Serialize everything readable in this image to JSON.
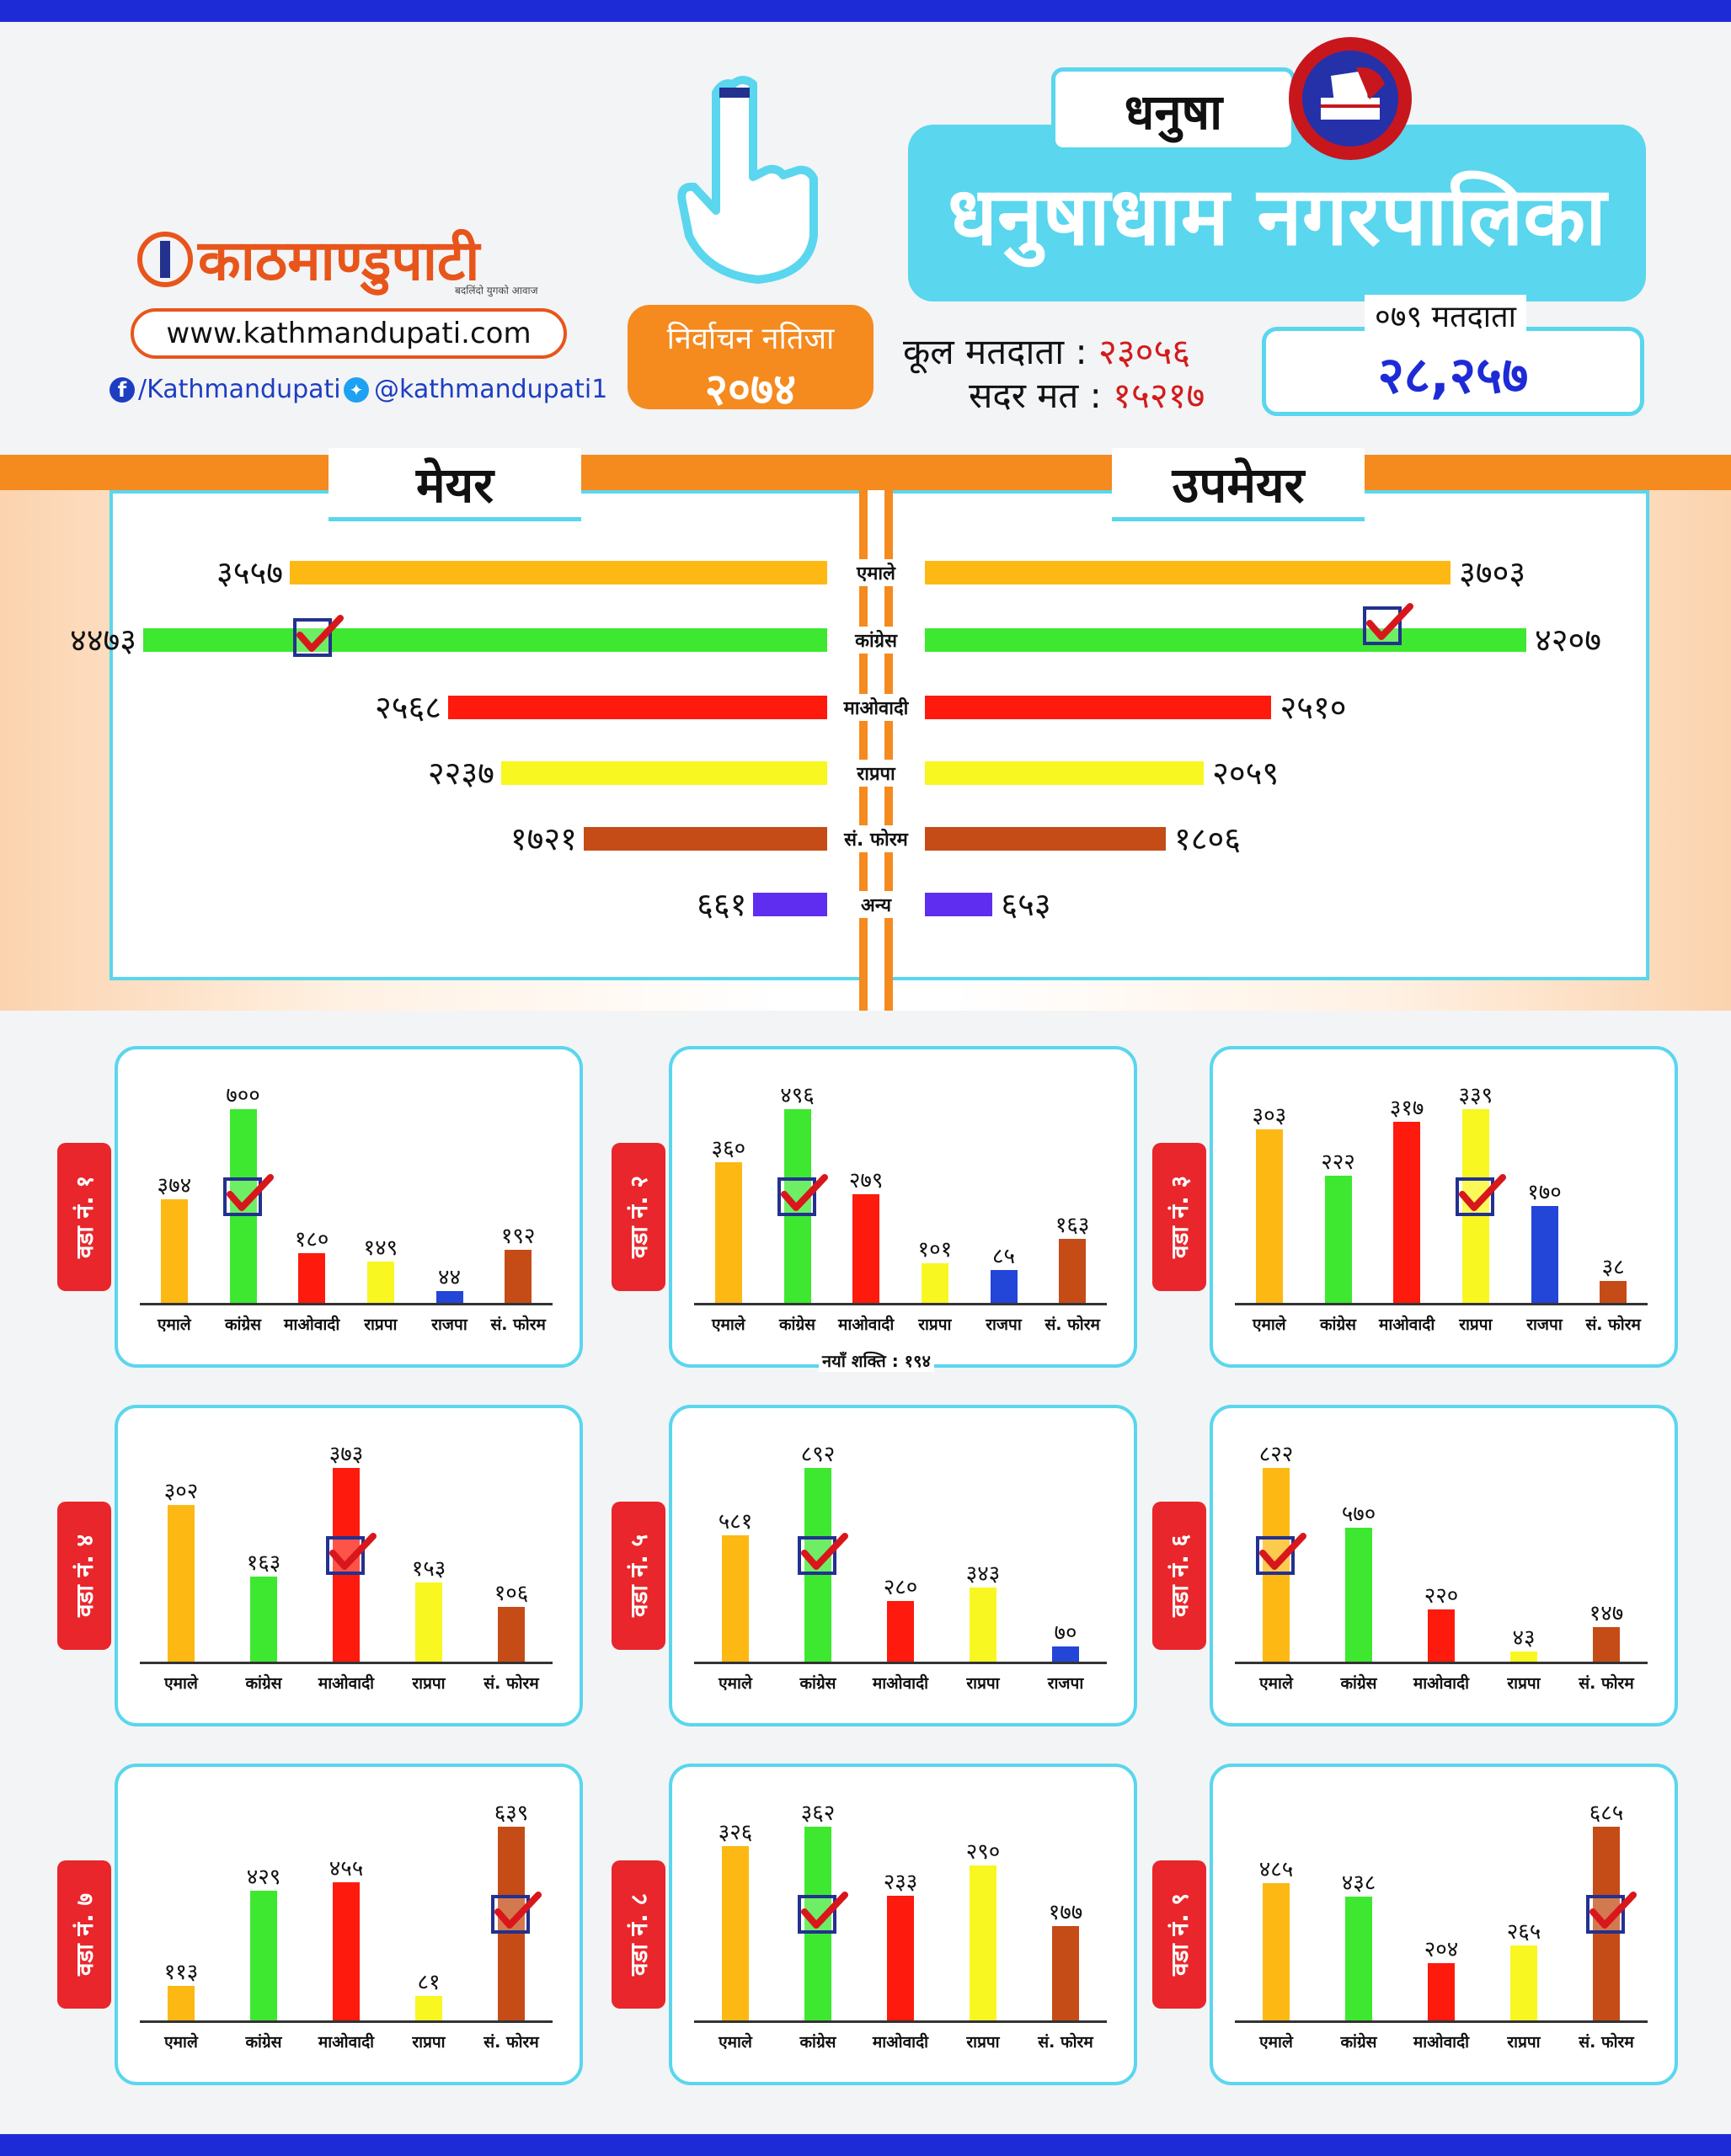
{
  "brand": {
    "name": "काठमाण्डुपाटी",
    "tagline": "बदलिंदो युगको आवाज",
    "url": "www.kathmandupati.com",
    "facebook": "/Kathmandupati",
    "twitter": "@kathmandupati1"
  },
  "header": {
    "result_line1": "निर्वाचन नतिजा",
    "result_year": "२०७४",
    "district": "धनुषा",
    "municipality": "धनुषाधाम नगरपालिका",
    "total_voters_label": "कूल मतदाता :",
    "total_voters_value": "२३०५६",
    "valid_votes_label": "सदर मत :",
    "valid_votes_value": "१५२१७",
    "voters_079_label": "०७९ मतदाता",
    "voters_079_value": "२८,२५७"
  },
  "colors": {
    "एमाले": "#fdb813",
    "कांग्रेस": "#3ee830",
    "माओवादी": "#fe1a0d",
    "राप्रपा": "#f8f721",
    "संफोरम": "#c54c16",
    "राजपा": "#2345d8",
    "अन्य": "#5e2df0"
  },
  "chart_data": [
    {
      "type": "bar",
      "title": "मेयर / उपमेयर",
      "orientation": "horizontal-butterfly",
      "left_title": "मेयर",
      "right_title": "उपमेयर",
      "categories": [
        "एमाले",
        "कांग्रेस",
        "माओवादी",
        "राप्रपा",
        "सं. फोरम",
        "अन्य"
      ],
      "color_keys": [
        "एमाले",
        "कांग्रेस",
        "माओवादी",
        "राप्रपा",
        "संफोरम",
        "अन्य"
      ],
      "series": [
        {
          "name": "मेयर",
          "values": [
            3557,
            4473,
            2568,
            2237,
            1721,
            661
          ],
          "labels": [
            "३५५७",
            "४४७३",
            "२५६८",
            "२२३७",
            "१७२१",
            "६६१"
          ],
          "winner_index": 1
        },
        {
          "name": "उपमेयर",
          "values": [
            3703,
            4207,
            2510,
            2059,
            1806,
            653
          ],
          "labels": [
            "३७०३",
            "४२०७",
            "२५१०",
            "२०५९",
            "१८०६",
            "६५३"
          ],
          "winner_index": 1
        }
      ],
      "xlim": [
        0,
        4500
      ]
    },
    {
      "type": "bar",
      "ward": "वडा नं. १",
      "categories": [
        "एमाले",
        "कांग्रेस",
        "माओवादी",
        "राप्रपा",
        "राजपा",
        "सं. फोरम"
      ],
      "color_keys": [
        "एमाले",
        "कांग्रेस",
        "माओवादी",
        "राप्रपा",
        "राजपा",
        "संफोरम"
      ],
      "values": [
        374,
        700,
        180,
        149,
        44,
        192
      ],
      "labels": [
        "३७४",
        "७००",
        "१८०",
        "१४९",
        "४४",
        "१९२"
      ],
      "winner_index": 1
    },
    {
      "type": "bar",
      "ward": "वडा नं. २",
      "categories": [
        "एमाले",
        "कांग्रेस",
        "माओवादी",
        "राप्रपा",
        "राजपा",
        "सं. फोरम"
      ],
      "color_keys": [
        "एमाले",
        "कांग्रेस",
        "माओवादी",
        "राप्रपा",
        "राजपा",
        "संफोरम"
      ],
      "values": [
        360,
        496,
        279,
        101,
        85,
        163
      ],
      "labels": [
        "३६०",
        "४९६",
        "२७९",
        "१०१",
        "८५",
        "१६३"
      ],
      "winner_index": 1,
      "note": "नयाँ शक्ति : १९४"
    },
    {
      "type": "bar",
      "ward": "वडा नं. ३",
      "categories": [
        "एमाले",
        "कांग्रेस",
        "माओवादी",
        "राप्रपा",
        "राजपा",
        "सं. फोरम"
      ],
      "color_keys": [
        "एमाले",
        "कांग्रेस",
        "माओवादी",
        "राप्रपा",
        "राजपा",
        "संफोरम"
      ],
      "values": [
        303,
        222,
        317,
        339,
        170,
        38
      ],
      "labels": [
        "३०३",
        "२२२",
        "३१७",
        "३३९",
        "१७०",
        "३८"
      ],
      "winner_index": 3
    },
    {
      "type": "bar",
      "ward": "वडा नं. ४",
      "categories": [
        "एमाले",
        "कांग्रेस",
        "माओवादी",
        "राप्रपा",
        "सं. फोरम"
      ],
      "color_keys": [
        "एमाले",
        "कांग्रेस",
        "माओवादी",
        "राप्रपा",
        "संफोरम"
      ],
      "values": [
        302,
        163,
        373,
        153,
        106
      ],
      "labels": [
        "३०२",
        "१६३",
        "३७३",
        "१५३",
        "१०६"
      ],
      "winner_index": 2
    },
    {
      "type": "bar",
      "ward": "वडा नं. ५",
      "categories": [
        "एमाले",
        "कांग्रेस",
        "माओवादी",
        "राप्रपा",
        "राजपा"
      ],
      "color_keys": [
        "एमाले",
        "कांग्रेस",
        "माओवादी",
        "राप्रपा",
        "राजपा"
      ],
      "values": [
        581,
        892,
        280,
        343,
        70
      ],
      "labels": [
        "५८१",
        "८९२",
        "२८०",
        "३४३",
        "७०"
      ],
      "winner_index": 1
    },
    {
      "type": "bar",
      "ward": "वडा नं. ६",
      "categories": [
        "एमाले",
        "कांग्रेस",
        "माओवादी",
        "राप्रपा",
        "सं. फोरम"
      ],
      "color_keys": [
        "एमाले",
        "कांग्रेस",
        "माओवादी",
        "राप्रपा",
        "संफोरम"
      ],
      "values": [
        822,
        570,
        220,
        43,
        147
      ],
      "labels": [
        "८२२",
        "५७०",
        "२२०",
        "४३",
        "१४७"
      ],
      "winner_index": 0
    },
    {
      "type": "bar",
      "ward": "वडा नं. ७",
      "categories": [
        "एमाले",
        "कांग्रेस",
        "माओवादी",
        "राप्रपा",
        "सं. फोरम"
      ],
      "color_keys": [
        "एमाले",
        "कांग्रेस",
        "माओवादी",
        "राप्रपा",
        "संफोरम"
      ],
      "values": [
        113,
        429,
        455,
        81,
        639
      ],
      "labels": [
        "११३",
        "४२९",
        "४५५",
        "८१",
        "६३९"
      ],
      "winner_index": 4
    },
    {
      "type": "bar",
      "ward": "वडा नं. ८",
      "categories": [
        "एमाले",
        "कांग्रेस",
        "माओवादी",
        "राप्रपा",
        "सं. फोरम"
      ],
      "color_keys": [
        "एमाले",
        "कांग्रेस",
        "माओवादी",
        "राप्रपा",
        "संफोरम"
      ],
      "values": [
        326,
        362,
        233,
        290,
        177
      ],
      "labels": [
        "३२६",
        "३६२",
        "२३३",
        "२९०",
        "१७७"
      ],
      "winner_index": 1
    },
    {
      "type": "bar",
      "ward": "वडा नं. ९",
      "categories": [
        "एमाले",
        "कांग्रेस",
        "माओवादी",
        "राप्रपा",
        "सं. फोरम"
      ],
      "color_keys": [
        "एमाले",
        "कांग्रेस",
        "माओवादी",
        "राप्रपा",
        "संफोरम"
      ],
      "values": [
        485,
        438,
        204,
        265,
        685
      ],
      "labels": [
        "४८५",
        "४३८",
        "२०४",
        "२६५",
        "६८५"
      ],
      "winner_index": 4
    }
  ]
}
